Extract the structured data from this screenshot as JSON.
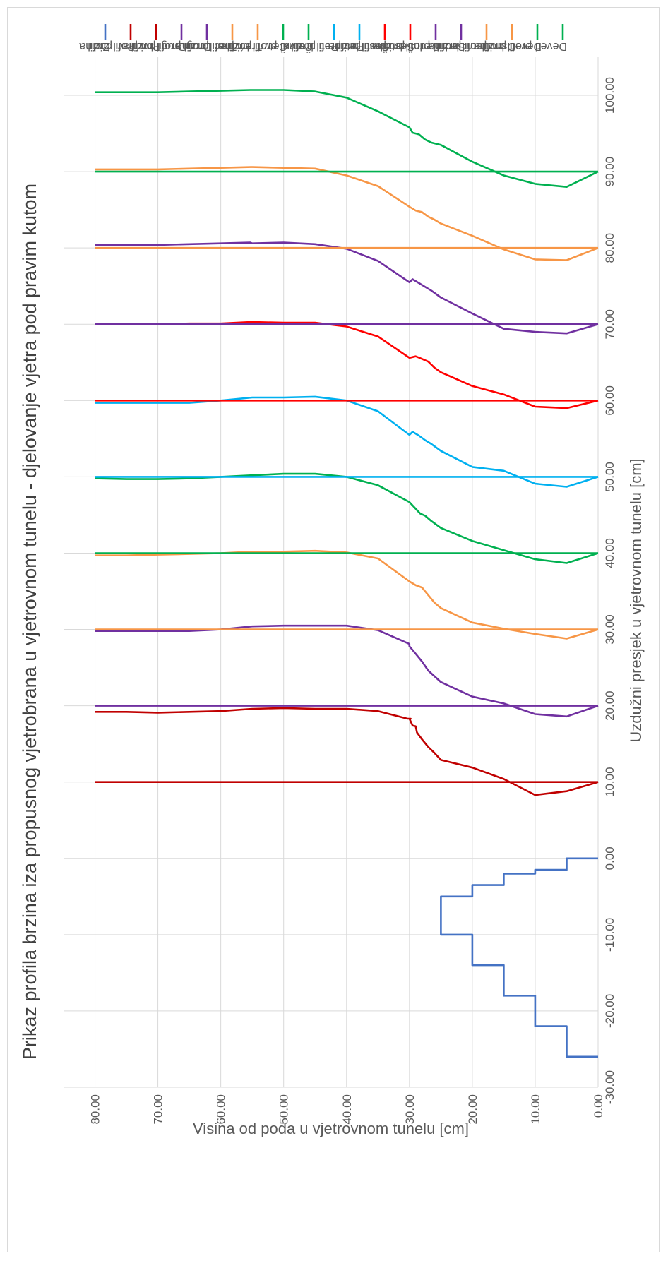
{
  "chart_data": {
    "type": "line",
    "title": "Prikaz profila brzina iza propusnog vjetrobrana u vjetrovnom tunelu - djelovanje vjetra pod pravim kutom",
    "xlabel": "Uzdužni presjek u vjetrovnom tunelu [cm]",
    "ylabel": "Visina od poda u vjetrovnom tunelu [cm]",
    "xlim": [
      -30,
      105
    ],
    "ylim": [
      0,
      85
    ],
    "x_ticks": [
      "-30.00",
      "-20.00",
      "-10.00",
      "0.00",
      "10.00",
      "20.00",
      "30.00",
      "40.00",
      "50.00",
      "60.00",
      "70.00",
      "80.00",
      "90.00",
      "100.00"
    ],
    "y_ticks": [
      "0.00",
      "10.00",
      "20.00",
      "30.00",
      "40.00",
      "50.00",
      "60.00",
      "70.00",
      "80.00"
    ],
    "grid": true,
    "legend_position": "right",
    "series": [
      {
        "name": "Zid",
        "color": "#4472C4",
        "points": [
          [
            -26,
            0
          ],
          [
            -26,
            5
          ],
          [
            -22,
            5
          ],
          [
            -22,
            10
          ],
          [
            -18,
            10
          ],
          [
            -18,
            15
          ],
          [
            -14,
            15
          ],
          [
            -14,
            20
          ],
          [
            -10,
            20
          ],
          [
            -10,
            25
          ],
          [
            -5,
            25
          ],
          [
            -5,
            20
          ],
          [
            -3.5,
            20
          ],
          [
            -3.5,
            15
          ],
          [
            -2,
            15
          ],
          [
            -2,
            10
          ],
          [
            -1.5,
            10
          ],
          [
            -1.5,
            5
          ],
          [
            0,
            5
          ],
          [
            0,
            0
          ]
        ]
      },
      {
        "name": "Prvi profil",
        "color": "#C00000",
        "points": [
          [
            10,
            0
          ],
          [
            10,
            80
          ]
        ]
      },
      {
        "name": "Prvi profil brzina",
        "color": "#C00000",
        "points": [
          [
            10,
            0
          ],
          [
            8.8,
            5
          ],
          [
            8.3,
            10
          ],
          [
            10.4,
            15
          ],
          [
            11.9,
            20
          ],
          [
            12.9,
            25
          ],
          [
            13.8,
            26
          ],
          [
            14.6,
            27
          ],
          [
            15.6,
            28
          ],
          [
            16.5,
            28.8
          ],
          [
            17.3,
            29
          ],
          [
            17.4,
            29.5
          ],
          [
            18.3,
            30
          ],
          [
            18.3,
            29.8
          ],
          [
            18.3,
            30.3
          ],
          [
            19.3,
            35
          ],
          [
            19.6,
            40
          ],
          [
            19.6,
            45
          ],
          [
            19.7,
            50
          ],
          [
            19.6,
            55
          ],
          [
            19.3,
            60
          ],
          [
            19.2,
            65
          ],
          [
            19.1,
            70
          ],
          [
            19.2,
            75
          ],
          [
            19.2,
            80
          ]
        ]
      },
      {
        "name": "Drugi profil",
        "color": "#7030A0",
        "points": [
          [
            20,
            0
          ],
          [
            20,
            80
          ]
        ]
      },
      {
        "name": "Drugi profil brzina",
        "color": "#7030A0",
        "points": [
          [
            20,
            0
          ],
          [
            18.6,
            5
          ],
          [
            18.9,
            10
          ],
          [
            20.3,
            15
          ],
          [
            21.2,
            20
          ],
          [
            23.1,
            25
          ],
          [
            24.6,
            27
          ],
          [
            25.8,
            28
          ],
          [
            27.3,
            29.5
          ],
          [
            27.8,
            30
          ],
          [
            28.1,
            30
          ],
          [
            29.9,
            35
          ],
          [
            30.5,
            40
          ],
          [
            30.5,
            45
          ],
          [
            30.5,
            50
          ],
          [
            30.4,
            55
          ],
          [
            30,
            60
          ],
          [
            29.8,
            65
          ],
          [
            29.8,
            70
          ],
          [
            29.8,
            75
          ],
          [
            29.8,
            80
          ]
        ]
      },
      {
        "name": "Treći profil",
        "color": "#F79646",
        "points": [
          [
            30,
            0
          ],
          [
            30,
            80
          ]
        ]
      },
      {
        "name": "Treći profil brzina",
        "color": "#F79646",
        "points": [
          [
            30,
            0
          ],
          [
            28.8,
            5
          ],
          [
            29.4,
            10
          ],
          [
            30.1,
            15
          ],
          [
            30.9,
            20
          ],
          [
            32.8,
            25
          ],
          [
            33.5,
            26
          ],
          [
            34.5,
            27
          ],
          [
            35.5,
            28
          ],
          [
            35.8,
            29
          ],
          [
            36.3,
            30
          ],
          [
            39.3,
            35
          ],
          [
            40.1,
            40
          ],
          [
            40.3,
            45
          ],
          [
            40.2,
            50
          ],
          [
            40.2,
            55
          ],
          [
            40,
            60
          ],
          [
            39.9,
            65
          ],
          [
            39.8,
            70
          ],
          [
            39.7,
            75
          ],
          [
            39.7,
            80
          ]
        ]
      },
      {
        "name": "Četvrti profil",
        "color": "#00B050",
        "points": [
          [
            40,
            0
          ],
          [
            40,
            80
          ]
        ]
      },
      {
        "name": "Četvrti profil brzina",
        "color": "#00B050",
        "points": [
          [
            40,
            0
          ],
          [
            38.7,
            5
          ],
          [
            39.2,
            10
          ],
          [
            40.4,
            15
          ],
          [
            41.6,
            20
          ],
          [
            43.3,
            25
          ],
          [
            44.2,
            26.5
          ],
          [
            44.9,
            27.5
          ],
          [
            45.2,
            28.3
          ],
          [
            46.7,
            30
          ],
          [
            48.9,
            35
          ],
          [
            50,
            40
          ],
          [
            50.4,
            45
          ],
          [
            50.4,
            50
          ],
          [
            50.2,
            55
          ],
          [
            50,
            60
          ],
          [
            49.8,
            65
          ],
          [
            49.7,
            70
          ],
          [
            49.7,
            75
          ],
          [
            49.8,
            80
          ]
        ]
      },
      {
        "name": "Peti profil",
        "color": "#00B0F0",
        "points": [
          [
            50,
            0
          ],
          [
            50,
            80
          ]
        ]
      },
      {
        "name": "Peti profil brzina",
        "color": "#00B0F0",
        "points": [
          [
            50,
            0
          ],
          [
            48.7,
            5
          ],
          [
            49.1,
            10
          ],
          [
            50.8,
            15
          ],
          [
            51.3,
            20
          ],
          [
            53.4,
            25
          ],
          [
            54.3,
            26.5
          ],
          [
            54.8,
            27.5
          ],
          [
            55.4,
            28.5
          ],
          [
            55.9,
            29.5
          ],
          [
            55.5,
            30
          ],
          [
            58.6,
            35
          ],
          [
            60,
            40
          ],
          [
            60.5,
            45
          ],
          [
            60.4,
            50
          ],
          [
            60.4,
            55
          ],
          [
            60,
            60
          ],
          [
            59.7,
            65
          ],
          [
            59.7,
            70
          ],
          [
            59.7,
            75
          ],
          [
            59.7,
            80
          ]
        ]
      },
      {
        "name": "Šesti profil",
        "color": "#FF0000",
        "points": [
          [
            60,
            0
          ],
          [
            60,
            80
          ]
        ]
      },
      {
        "name": "Šesti profil brzina",
        "color": "#FF0000",
        "points": [
          [
            60,
            0
          ],
          [
            59,
            5
          ],
          [
            59.2,
            10
          ],
          [
            60.8,
            15
          ],
          [
            61.9,
            20
          ],
          [
            63.7,
            25
          ],
          [
            64.3,
            26
          ],
          [
            65.1,
            27
          ],
          [
            65.6,
            28.4
          ],
          [
            65.8,
            29
          ],
          [
            65.6,
            30
          ],
          [
            68.4,
            35
          ],
          [
            69.7,
            40
          ],
          [
            70.2,
            45
          ],
          [
            70.2,
            50
          ],
          [
            70.3,
            55
          ],
          [
            70.3,
            55.2
          ],
          [
            70.1,
            60
          ],
          [
            70.1,
            65
          ],
          [
            70,
            70
          ],
          [
            70,
            75
          ],
          [
            70,
            80
          ]
        ]
      },
      {
        "name": "Sedmi profil",
        "color": "#7030A0",
        "points": [
          [
            70,
            0
          ],
          [
            70,
            80
          ]
        ]
      },
      {
        "name": "Sedmi profil brzina",
        "color": "#7030A0",
        "points": [
          [
            70,
            0
          ],
          [
            68.8,
            5
          ],
          [
            69,
            10
          ],
          [
            69.4,
            15
          ],
          [
            71.4,
            20
          ],
          [
            73.5,
            25
          ],
          [
            74.4,
            26.5
          ],
          [
            74.9,
            27.5
          ],
          [
            75.4,
            28.5
          ],
          [
            75.9,
            29.5
          ],
          [
            75.5,
            30
          ],
          [
            78.3,
            35
          ],
          [
            79.9,
            40
          ],
          [
            80.5,
            45
          ],
          [
            80.7,
            50
          ],
          [
            80.6,
            55
          ],
          [
            80.7,
            55.3
          ],
          [
            80.6,
            60
          ],
          [
            80.5,
            65
          ],
          [
            80.4,
            70
          ],
          [
            80.4,
            75
          ],
          [
            80.4,
            80
          ]
        ]
      },
      {
        "name": "Osmi profil",
        "color": "#F79646",
        "points": [
          [
            80,
            0
          ],
          [
            80,
            80
          ]
        ]
      },
      {
        "name": "Osmi profil brzina",
        "color": "#F79646",
        "points": [
          [
            80,
            0
          ],
          [
            78.4,
            5
          ],
          [
            78.5,
            10
          ],
          [
            79.8,
            15
          ],
          [
            81.6,
            20
          ],
          [
            83.2,
            25
          ],
          [
            83.7,
            26
          ],
          [
            84.1,
            27
          ],
          [
            84.7,
            28
          ],
          [
            84.9,
            29
          ],
          [
            85.4,
            30
          ],
          [
            88.1,
            35
          ],
          [
            89.5,
            40
          ],
          [
            90.4,
            45
          ],
          [
            90.5,
            50
          ],
          [
            90.6,
            55
          ],
          [
            90.6,
            55.2
          ],
          [
            90.5,
            60
          ],
          [
            90.4,
            65
          ],
          [
            90.3,
            70
          ],
          [
            90.3,
            75
          ],
          [
            90.3,
            80
          ]
        ]
      },
      {
        "name": "Deveti profil",
        "color": "#00B050",
        "points": [
          [
            90,
            0
          ],
          [
            90,
            80
          ]
        ]
      },
      {
        "name": "Deveti profil brzina",
        "color": "#00B050",
        "points": [
          [
            90,
            0
          ],
          [
            88,
            5
          ],
          [
            88.4,
            10
          ],
          [
            89.5,
            15
          ],
          [
            91.3,
            20
          ],
          [
            93.5,
            25
          ],
          [
            93.8,
            26.5
          ],
          [
            94.2,
            27.5
          ],
          [
            94.9,
            28.5
          ],
          [
            95.1,
            29.5
          ],
          [
            95.8,
            30
          ],
          [
            97.9,
            35
          ],
          [
            99.7,
            40
          ],
          [
            100.5,
            45
          ],
          [
            100.7,
            50
          ],
          [
            100.7,
            55
          ],
          [
            100.7,
            55.3
          ],
          [
            100.6,
            60
          ],
          [
            100.5,
            65
          ],
          [
            100.4,
            70
          ],
          [
            100.4,
            75
          ],
          [
            100.4,
            80
          ]
        ]
      }
    ]
  }
}
